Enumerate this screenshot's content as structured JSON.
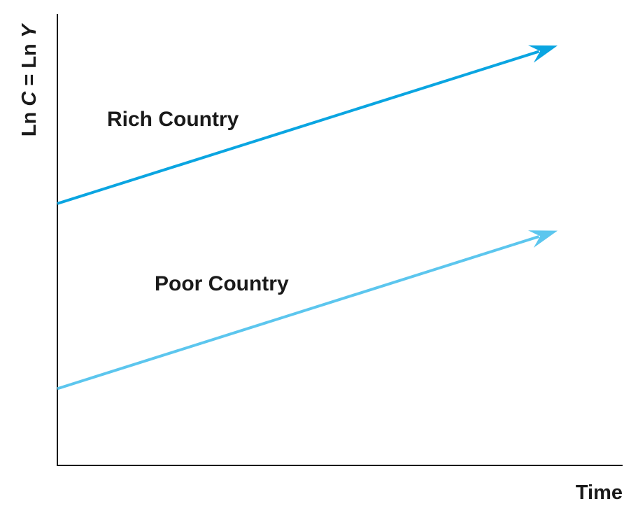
{
  "chart_data": {
    "type": "line",
    "xlabel": "Time",
    "ylabel": {
      "parts": [
        "Ln ",
        "C",
        " = Ln ",
        "Y"
      ]
    },
    "grid": false,
    "series": [
      {
        "name": "Rich Country",
        "color": "#0aa5e1",
        "x": [
          0,
          1
        ],
        "y": [
          0.58,
          0.93
        ],
        "arrow": true
      },
      {
        "name": "Poor Country",
        "color": "#5cc6ee",
        "x": [
          0,
          1
        ],
        "y": [
          0.17,
          0.52
        ],
        "arrow": true
      }
    ]
  },
  "colors": {
    "axis": "#1a1a1a",
    "text": "#1a1a1a"
  }
}
